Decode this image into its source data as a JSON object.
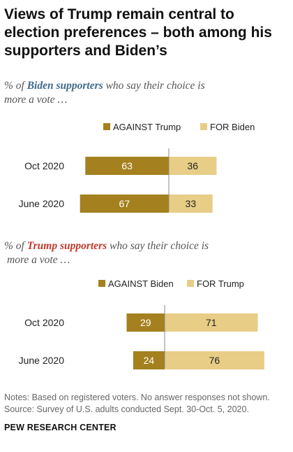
{
  "title": "Views of Trump remain central to election preferences – both among his supporters and Biden’s",
  "colors": {
    "against": "#a4801f",
    "for": "#e8cd87",
    "biden": "#406a8a",
    "trump": "#c0392b"
  },
  "subtitle_1": {
    "prefix": "% of ",
    "highlight": "Biden supporters",
    "suffix": " who say their choice is",
    "line2": "more a vote …"
  },
  "subtitle_2": {
    "prefix": "% of ",
    "highlight": "Trump supporters",
    "suffix": " who say their choice is",
    "line2": "more a vote …"
  },
  "notes": "Notes: Based on registered voters. No answer responses not shown.",
  "source": "Source: Survey of U.S. adults conducted Sept. 30-Oct. 5, 2020.",
  "org": "PEW RESEARCH CENTER",
  "chart_data": [
    {
      "type": "bar",
      "orientation": "diverging-horizontal",
      "categories": [
        "Oct 2020",
        "June 2020"
      ],
      "series": [
        {
          "name": "AGAINST Trump",
          "values": [
            63,
            67
          ]
        },
        {
          "name": "FOR Biden",
          "values": [
            36,
            33
          ]
        }
      ]
    },
    {
      "type": "bar",
      "orientation": "diverging-horizontal",
      "categories": [
        "Oct 2020",
        "June 2020"
      ],
      "series": [
        {
          "name": "AGAINST Biden",
          "values": [
            29,
            24
          ]
        },
        {
          "name": "FOR Trump",
          "values": [
            71,
            76
          ]
        }
      ]
    }
  ]
}
